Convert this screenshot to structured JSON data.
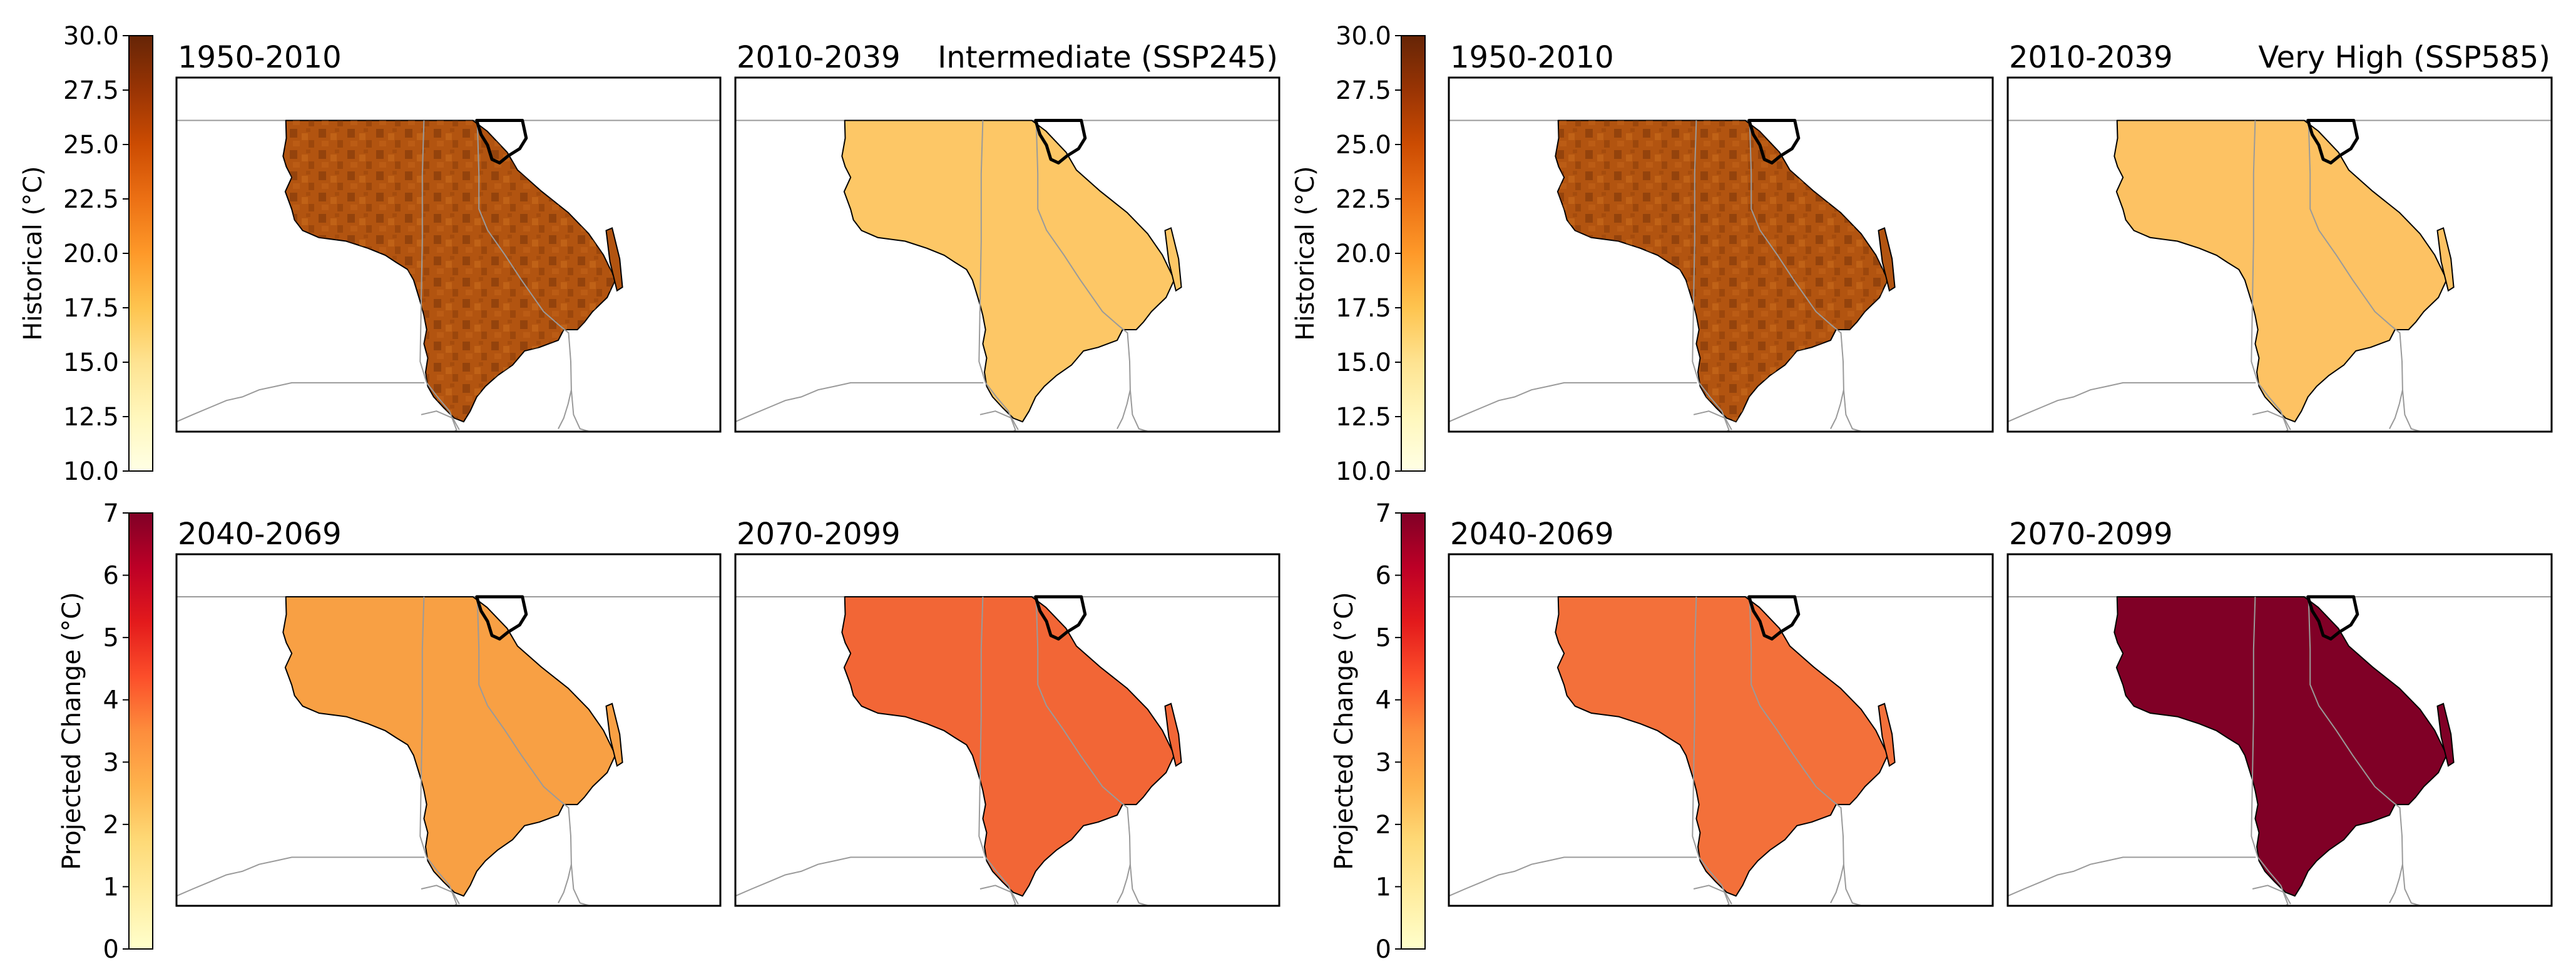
{
  "figure": {
    "colors": {
      "frame": "#000000",
      "background": "#ffffff",
      "border_line": "#9a9a9a",
      "region_outline": "#000000"
    },
    "groups": [
      {
        "scenario_label": "Intermediate (SSP245)",
        "top_colorbar": {
          "label": "Historical (°C)",
          "range": [
            10.0,
            30.0
          ],
          "ticks": [
            "10.0",
            "12.5",
            "15.0",
            "17.5",
            "20.0",
            "22.5",
            "25.0",
            "27.5",
            "30.0"
          ],
          "tick_values": [
            10.0,
            12.5,
            15.0,
            17.5,
            20.0,
            22.5,
            25.0,
            27.5,
            30.0
          ],
          "colormap": "YlOrBr"
        },
        "bottom_colorbar": {
          "label": "Projected Change (°C)",
          "range": [
            0,
            7
          ],
          "ticks": [
            "0",
            "1",
            "2",
            "3",
            "4",
            "5",
            "6",
            "7"
          ],
          "tick_values": [
            0,
            1,
            2,
            3,
            4,
            5,
            6,
            7
          ],
          "colormap": "YlOrRd"
        },
        "panels": [
          {
            "period": "1950-2010",
            "fill": "#b25410",
            "texture": true
          },
          {
            "period": "2010-2039",
            "fill": "#fdc766",
            "texture": false
          },
          {
            "period": "2040-2069",
            "fill": "#f8a044",
            "texture": false
          },
          {
            "period": "2070-2099",
            "fill": "#f26636",
            "texture": false
          }
        ]
      },
      {
        "scenario_label": "Very High (SSP585)",
        "top_colorbar": {
          "label": "Historical (°C)",
          "range": [
            10.0,
            30.0
          ],
          "ticks": [
            "10.0",
            "12.5",
            "15.0",
            "17.5",
            "20.0",
            "22.5",
            "25.0",
            "27.5",
            "30.0"
          ],
          "tick_values": [
            10.0,
            12.5,
            15.0,
            17.5,
            20.0,
            22.5,
            25.0,
            27.5,
            30.0
          ],
          "colormap": "YlOrBr"
        },
        "bottom_colorbar": {
          "label": "Projected Change (°C)",
          "range": [
            0,
            7
          ],
          "ticks": [
            "0",
            "1",
            "2",
            "3",
            "4",
            "5",
            "6",
            "7"
          ],
          "tick_values": [
            0,
            1,
            2,
            3,
            4,
            5,
            6,
            7
          ],
          "colormap": "YlOrRd"
        },
        "panels": [
          {
            "period": "1950-2010",
            "fill": "#b25410",
            "texture": true
          },
          {
            "period": "2010-2039",
            "fill": "#fdc263",
            "texture": false
          },
          {
            "period": "2040-2069",
            "fill": "#f3703a",
            "texture": false
          },
          {
            "period": "2070-2099",
            "fill": "#800026",
            "texture": false
          }
        ]
      }
    ]
  }
}
